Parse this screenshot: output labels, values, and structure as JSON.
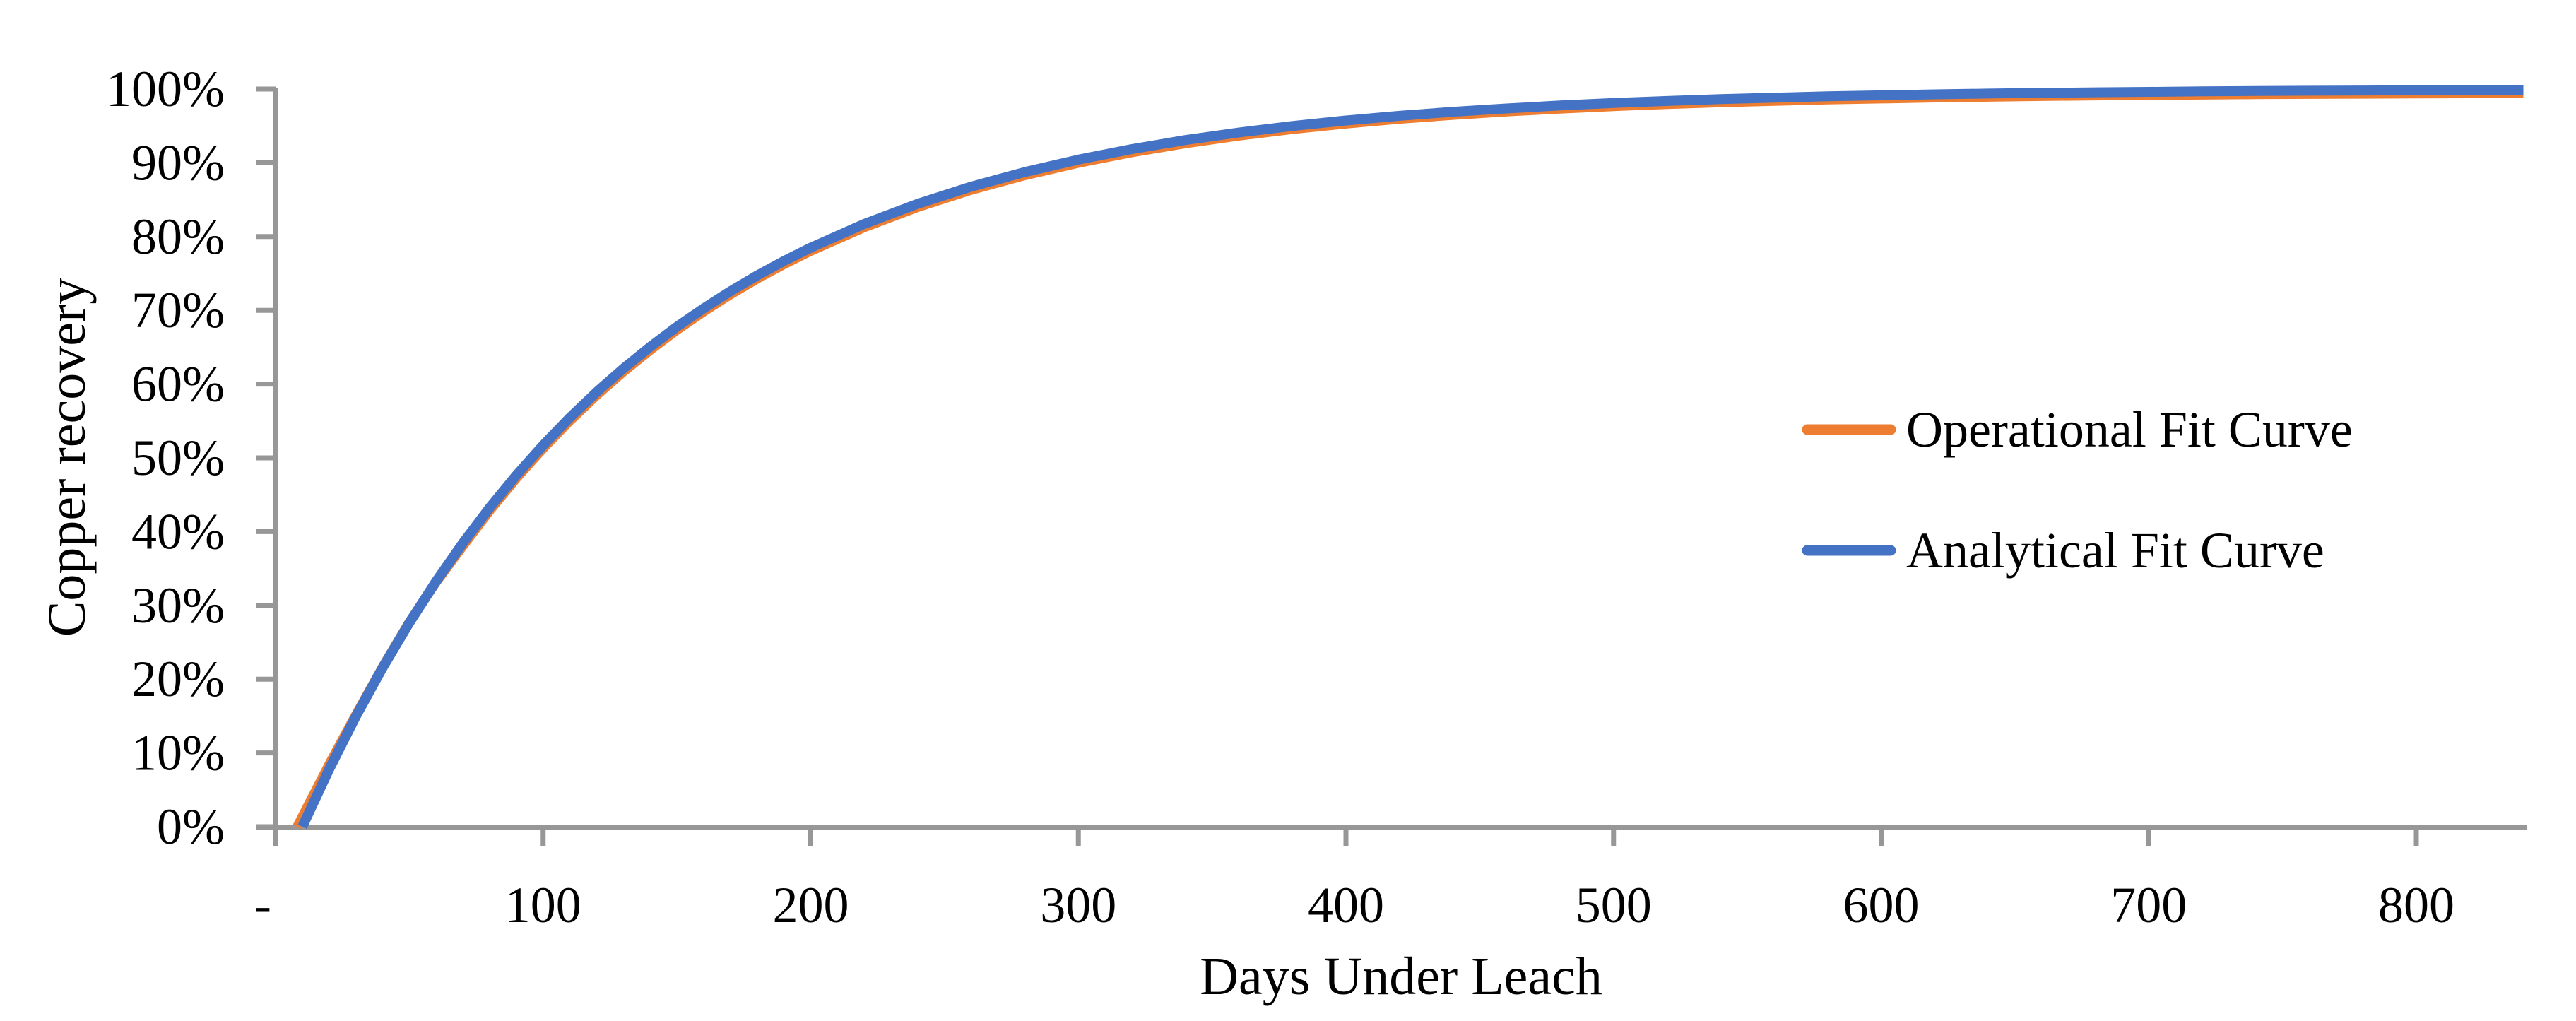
{
  "figure": {
    "background": "#ffffff",
    "text_color": "#000000",
    "axis_color": "#979797"
  },
  "chart_data": {
    "type": "line",
    "title": "",
    "xlabel": "Days Under Leach",
    "ylabel": "Copper recovery",
    "xlim": [
      0,
      841
    ],
    "ylim": [
      0,
      1
    ],
    "grid": false,
    "legend_position": "right-middle",
    "x_ticks": [
      {
        "value": 0,
        "label": "-"
      },
      {
        "value": 100,
        "label": "100"
      },
      {
        "value": 200,
        "label": "200"
      },
      {
        "value": 300,
        "label": "300"
      },
      {
        "value": 400,
        "label": "400"
      },
      {
        "value": 500,
        "label": "500"
      },
      {
        "value": 600,
        "label": "600"
      },
      {
        "value": 700,
        "label": "700"
      },
      {
        "value": 800,
        "label": "800"
      }
    ],
    "y_ticks": [
      {
        "value": 0.0,
        "label": "0%"
      },
      {
        "value": 0.1,
        "label": "10%"
      },
      {
        "value": 0.2,
        "label": "20%"
      },
      {
        "value": 0.3,
        "label": "30%"
      },
      {
        "value": 0.4,
        "label": "40%"
      },
      {
        "value": 0.5,
        "label": "50%"
      },
      {
        "value": 0.6,
        "label": "60%"
      },
      {
        "value": 0.7,
        "label": "70%"
      },
      {
        "value": 0.8,
        "label": "80%"
      },
      {
        "value": 0.9,
        "label": "90%"
      },
      {
        "value": 1.0,
        "label": "100%"
      }
    ],
    "series": [
      {
        "name": "Operational Fit Curve",
        "color": "#ED7D31",
        "stroke_width": 13,
        "points": [
          [
            8,
            0
          ],
          [
            20,
            0.085
          ],
          [
            30,
            0.152
          ],
          [
            40,
            0.217
          ],
          [
            50,
            0.278
          ],
          [
            60,
            0.331
          ],
          [
            70,
            0.38
          ],
          [
            80,
            0.428
          ],
          [
            90,
            0.472
          ],
          [
            100,
            0.5125
          ],
          [
            110,
            0.5499
          ],
          [
            120,
            0.5845
          ],
          [
            130,
            0.6164
          ],
          [
            140,
            0.6458
          ],
          [
            150,
            0.673
          ],
          [
            160,
            0.6979
          ],
          [
            170,
            0.7212
          ],
          [
            180,
            0.7425
          ],
          [
            190,
            0.7621
          ],
          [
            200,
            0.7802
          ],
          [
            220,
            0.8123
          ],
          [
            240,
            0.8396
          ],
          [
            260,
            0.8629
          ],
          [
            280,
            0.8827
          ],
          [
            300,
            0.8995
          ],
          [
            320,
            0.9138
          ],
          [
            340,
            0.926
          ],
          [
            360,
            0.9364
          ],
          [
            380,
            0.9452
          ],
          [
            400,
            0.9527
          ],
          [
            420,
            0.9591
          ],
          [
            440,
            0.9645
          ],
          [
            460,
            0.9691
          ],
          [
            480,
            0.973
          ],
          [
            500,
            0.9763
          ],
          [
            520,
            0.9791
          ],
          [
            540,
            0.9815
          ],
          [
            560,
            0.9835
          ],
          [
            580,
            0.9853
          ],
          [
            600,
            0.9867
          ],
          [
            620,
            0.988
          ],
          [
            640,
            0.9891
          ],
          [
            660,
            0.99
          ],
          [
            680,
            0.9908
          ],
          [
            700,
            0.9914
          ],
          [
            720,
            0.992
          ],
          [
            740,
            0.9925
          ],
          [
            760,
            0.9929
          ],
          [
            780,
            0.9932
          ],
          [
            800,
            0.9935
          ],
          [
            820,
            0.9938
          ],
          [
            840,
            0.994
          ]
        ]
      },
      {
        "name": "Analytical Fit Curve",
        "color": "#4472C4",
        "stroke_width": 14,
        "points": [
          [
            10,
            0
          ],
          [
            20,
            0.0777
          ],
          [
            30,
            0.1494
          ],
          [
            40,
            0.2155
          ],
          [
            50,
            0.2765
          ],
          [
            60,
            0.3327
          ],
          [
            70,
            0.3845
          ],
          [
            80,
            0.4324
          ],
          [
            90,
            0.4765
          ],
          [
            100,
            0.5172
          ],
          [
            110,
            0.5547
          ],
          [
            120,
            0.5893
          ],
          [
            130,
            0.6212
          ],
          [
            140,
            0.6506
          ],
          [
            150,
            0.6778
          ],
          [
            160,
            0.7027
          ],
          [
            170,
            0.726
          ],
          [
            180,
            0.7473
          ],
          [
            190,
            0.7669
          ],
          [
            200,
            0.785
          ],
          [
            220,
            0.8171
          ],
          [
            240,
            0.8444
          ],
          [
            260,
            0.8677
          ],
          [
            280,
            0.8875
          ],
          [
            300,
            0.9043
          ],
          [
            320,
            0.9186
          ],
          [
            340,
            0.9308
          ],
          [
            360,
            0.9411
          ],
          [
            380,
            0.9499
          ],
          [
            400,
            0.9574
          ],
          [
            420,
            0.9637
          ],
          [
            440,
            0.9692
          ],
          [
            460,
            0.9737
          ],
          [
            480,
            0.9777
          ],
          [
            500,
            0.9811
          ],
          [
            520,
            0.9838
          ],
          [
            540,
            0.9863
          ],
          [
            560,
            0.9883
          ],
          [
            580,
            0.9901
          ],
          [
            600,
            0.9915
          ],
          [
            620,
            0.9928
          ],
          [
            640,
            0.9939
          ],
          [
            660,
            0.9948
          ],
          [
            680,
            0.9956
          ],
          [
            700,
            0.9962
          ],
          [
            720,
            0.9968
          ],
          [
            740,
            0.9973
          ],
          [
            760,
            0.9977
          ],
          [
            780,
            0.998
          ],
          [
            800,
            0.9983
          ],
          [
            820,
            0.9986
          ],
          [
            840,
            0.9988
          ]
        ]
      }
    ]
  }
}
